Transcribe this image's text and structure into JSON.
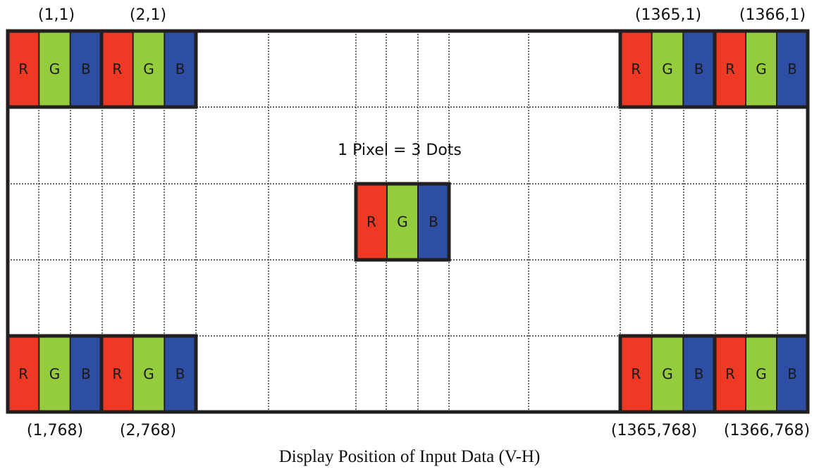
{
  "diagram": {
    "caption": "Display Position of Input Data (V-H)",
    "note": "1 Pixel = 3 Dots",
    "dot_letters": [
      "R",
      "G",
      "B"
    ],
    "dot_colors": [
      "#ee3a24",
      "#94cc3d",
      "#2d4ea3"
    ],
    "letter_color": "#1a1a1a",
    "frame_color": "#231f20",
    "coordinates": {
      "top_left": "(1,1)",
      "top_second": "(2,1)",
      "top_second_last": "(1365,1)",
      "top_last": "(1366,1)",
      "bottom_left": "(1,768)",
      "bottom_second": "(2,768)",
      "bottom_second_last": "(1365,768)",
      "bottom_last": "(1366,768)"
    }
  }
}
